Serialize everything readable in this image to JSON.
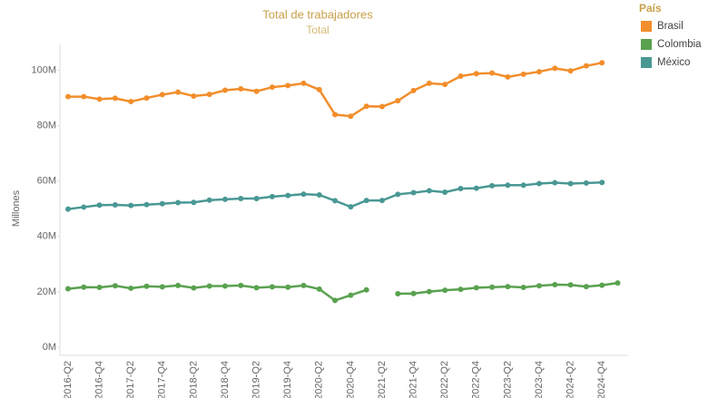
{
  "chart_data": {
    "type": "line",
    "title": "Total de trabajadores",
    "subtitle": "Total",
    "y_label": "Millones",
    "legend_title": "País",
    "legend_position": "top-right",
    "grid": false,
    "categories": [
      "2016-Q2",
      null,
      "2016-Q4",
      null,
      "2017-Q2",
      null,
      "2017-Q4",
      null,
      "2018-Q2",
      null,
      "2018-Q4",
      null,
      "2019-Q2",
      null,
      "2019-Q4",
      null,
      "2020-Q2",
      null,
      "2020-Q4",
      null,
      "2021-Q2",
      null,
      "2021-Q4",
      null,
      "2022-Q2",
      null,
      "2022-Q4",
      null,
      "2023-Q2",
      null,
      "2023-Q4",
      null,
      "2024-Q2",
      null,
      "2024-Q4",
      null
    ],
    "ylim": [
      0,
      110
    ],
    "yticks": [
      {
        "value": 0,
        "label": "0M"
      },
      {
        "value": 20,
        "label": "20M"
      },
      {
        "value": 40,
        "label": "40M"
      },
      {
        "value": 60,
        "label": "60M"
      },
      {
        "value": 80,
        "label": "80M"
      },
      {
        "value": 100,
        "label": "100M"
      }
    ],
    "series": [
      {
        "name": "Brasil",
        "color": "#f28e2b",
        "values": [
          90.5,
          90.5,
          89.6,
          89.9,
          88.7,
          90.0,
          91.2,
          92.1,
          90.7,
          91.3,
          92.8,
          93.3,
          92.4,
          93.9,
          94.5,
          95.3,
          93.0,
          84.0,
          83.4,
          87.0,
          86.9,
          89.0,
          92.7,
          95.3,
          94.9,
          97.9,
          98.8,
          99.0,
          97.6,
          98.6,
          99.5,
          100.7,
          99.8,
          101.6,
          102.7,
          null
        ]
      },
      {
        "name": "Colombia",
        "color": "#59a14f",
        "values": [
          21.1,
          21.7,
          21.6,
          22.2,
          21.3,
          22.0,
          21.8,
          22.3,
          21.4,
          22.1,
          22.1,
          22.3,
          21.5,
          21.8,
          21.7,
          22.3,
          21.0,
          16.9,
          18.8,
          20.7,
          null,
          19.3,
          19.4,
          20.1,
          20.6,
          20.9,
          21.5,
          21.7,
          21.9,
          21.6,
          22.2,
          22.6,
          22.5,
          21.9,
          22.4,
          23.2
        ]
      },
      {
        "name": "México",
        "color": "#499894",
        "values": [
          49.9,
          50.6,
          51.3,
          51.4,
          51.2,
          51.5,
          51.8,
          52.2,
          52.3,
          53.1,
          53.4,
          53.7,
          53.7,
          54.4,
          54.8,
          55.3,
          55.0,
          52.9,
          50.7,
          53.0,
          53.0,
          55.2,
          55.8,
          56.5,
          56.0,
          57.3,
          57.4,
          58.3,
          58.5,
          58.5,
          59.1,
          59.4,
          59.1,
          59.3,
          59.5,
          null
        ]
      }
    ]
  }
}
